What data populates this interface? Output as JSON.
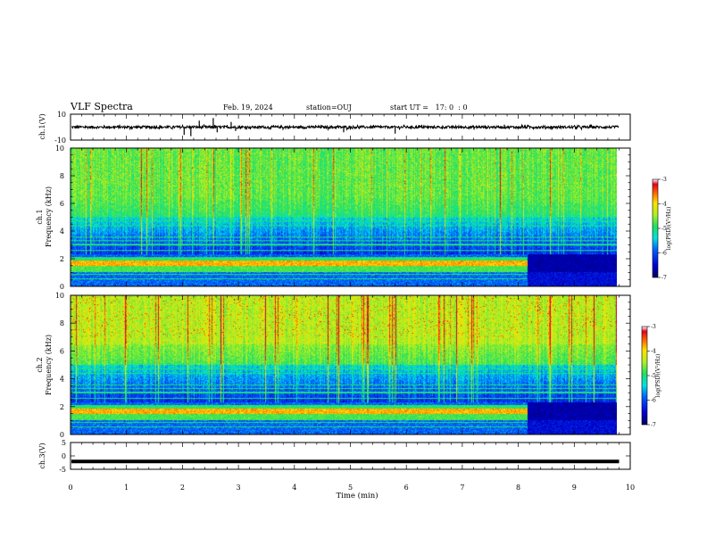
{
  "header": {
    "title": "VLF Spectra",
    "date": "Feb. 19, 2024",
    "station": "station=OUJ",
    "start": "start UT =   17: 0  : 0"
  },
  "chart_data": [
    {
      "type": "line",
      "name": "ch1-waveform",
      "ylabel": "ch.1(V)",
      "xlim": [
        0,
        10
      ],
      "ylim": [
        -10,
        10
      ],
      "yticks": [
        "10",
        "-10"
      ],
      "trace_level": 0,
      "trace_noise": 1.0,
      "trace_end": 9.8,
      "spikes": [
        {
          "x": 2.03,
          "y": -6
        },
        {
          "x": 2.15,
          "y": -7
        },
        {
          "x": 2.3,
          "y": 5
        },
        {
          "x": 2.55,
          "y": 7
        },
        {
          "x": 2.62,
          "y": -4
        },
        {
          "x": 2.87,
          "y": 4
        },
        {
          "x": 2.95,
          "y": -3
        },
        {
          "x": 4.88,
          "y": -4
        },
        {
          "x": 5.8,
          "y": -5
        }
      ]
    },
    {
      "type": "heatmap",
      "name": "ch1-spectrogram",
      "ylabel": "ch.1\nFrequency (kHz)",
      "xlim": [
        0,
        9.8
      ],
      "ylim": [
        0,
        10
      ],
      "yticks": [
        "0",
        "2",
        "4",
        "6",
        "8",
        "10"
      ],
      "zlim": [
        -7,
        -3
      ],
      "colorbar_label": "log(PSD)(V²/Hz)",
      "colorbar_ticks": [
        "-3",
        "-4",
        "-5",
        "-6",
        "-7"
      ],
      "interference_end": 8.2
    },
    {
      "type": "heatmap",
      "name": "ch2-spectrogram",
      "ylabel": "ch.2\nFrequency (kHz)",
      "xlim": [
        0,
        9.8
      ],
      "ylim": [
        0,
        10
      ],
      "yticks": [
        "0",
        "2",
        "4",
        "6",
        "8",
        "10"
      ],
      "zlim": [
        -7,
        -3
      ],
      "colorbar_label": "log(PSD)(V²/Hz)",
      "colorbar_ticks": [
        "-3",
        "-4",
        "-5",
        "-6",
        "-7"
      ],
      "interference_end": 8.2
    },
    {
      "type": "line",
      "name": "ch3-waveform",
      "ylabel": "ch.3(V)",
      "xlim": [
        0,
        10
      ],
      "ylim": [
        -5,
        5
      ],
      "yticks": [
        "5",
        "0",
        "-5"
      ],
      "trace_level": -2.1,
      "trace_noise": 0.0,
      "trace_end": 9.8,
      "spikes": []
    }
  ],
  "xaxis": {
    "label": "Time (min)",
    "ticks": [
      "0",
      "1",
      "2",
      "3",
      "4",
      "5",
      "6",
      "7",
      "8",
      "9",
      "10"
    ]
  }
}
